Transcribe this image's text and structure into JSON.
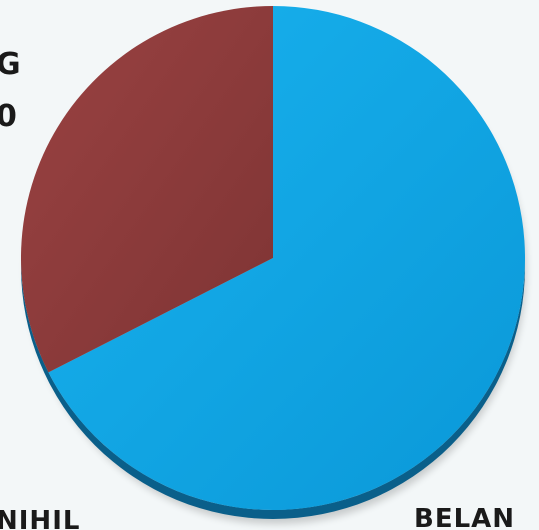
{
  "chart_data": {
    "type": "pie",
    "title": "",
    "slices": [
      {
        "label": "",
        "value": 67.5,
        "color": "#0ca3e4"
      },
      {
        "label": "",
        "value": 32.5,
        "color": "#8b3a3a"
      }
    ],
    "start_angle_deg": 0,
    "direction": "clockwise",
    "style": "3d"
  },
  "annotations": {
    "top_line_1": "G",
    "top_line_2": "0",
    "bottom_left": "NIHIL",
    "bottom_right": "BELAN"
  }
}
